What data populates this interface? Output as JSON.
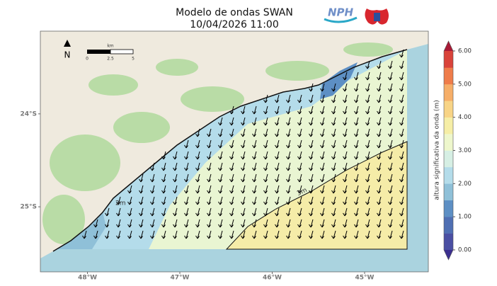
{
  "header": {
    "title": "Modelo de ondas SWAN",
    "subtitle": "10/04/2026 11:00",
    "logo": "NPH"
  },
  "map": {
    "xlim": [
      -48.51,
      -44.31
    ],
    "ylim": [
      -25.7,
      -23.11
    ],
    "xticks": [
      {
        "value": -48,
        "label": "48°W"
      },
      {
        "value": -47,
        "label": "47°W"
      },
      {
        "value": -46,
        "label": "46°W"
      },
      {
        "value": -45,
        "label": "45°W"
      }
    ],
    "yticks": [
      {
        "value": -24,
        "label": "24°S"
      },
      {
        "value": -25,
        "label": "25°S"
      }
    ],
    "north": "N",
    "scale_bar": {
      "unit": "km",
      "labels": [
        "0",
        "2.5",
        "5"
      ]
    },
    "contour_labels": [
      "2m",
      "3m"
    ]
  },
  "colorbar": {
    "label": "altura significativa da onda (m)",
    "lim": [
      0,
      6
    ],
    "ticks": [
      {
        "value": 0,
        "label": "0.00"
      },
      {
        "value": 1,
        "label": "1.00"
      },
      {
        "value": 2,
        "label": "2.00"
      },
      {
        "value": 3,
        "label": "3.00"
      },
      {
        "value": 4,
        "label": "4.00"
      },
      {
        "value": 5,
        "label": "5.00"
      },
      {
        "value": 6,
        "label": "6.00"
      }
    ],
    "colors": [
      "#4a4fa3",
      "#4f6fb3",
      "#5d8fc4",
      "#8fc0d8",
      "#b4dcea",
      "#d6efe4",
      "#eef7cc",
      "#f6eea6",
      "#f8d486",
      "#f6ae68",
      "#ef7c4a",
      "#d9433a"
    ],
    "under_color": "#3b2f8f",
    "over_color": "#a81a36"
  }
}
